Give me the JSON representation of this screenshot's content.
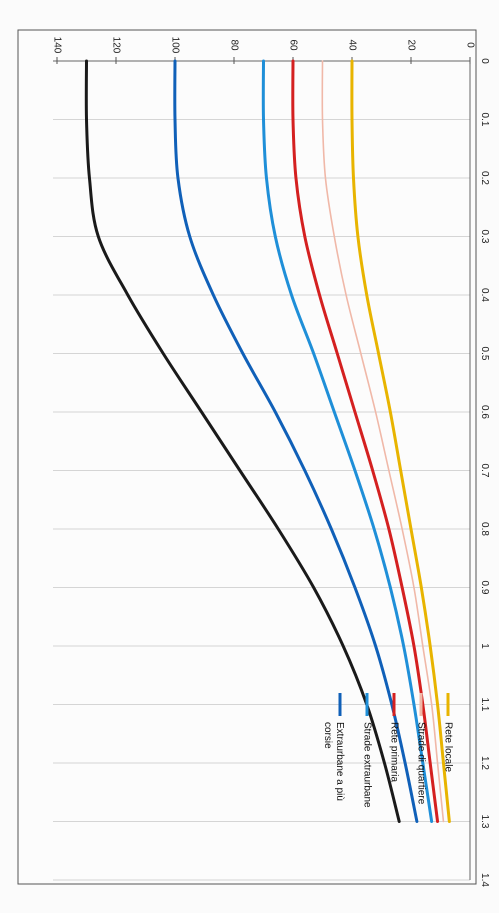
{
  "chart_data": {
    "type": "line",
    "title": "",
    "xlabel": "",
    "ylabel": "",
    "xlim": [
      0,
      1.4
    ],
    "ylim": [
      0,
      140
    ],
    "x_ticks": [
      "0",
      "0.1",
      "0.2",
      "0.3",
      "0.4",
      "0.5",
      "0.6",
      "0.7",
      "0.8",
      "0.9",
      "1",
      "1.1",
      "1.2",
      "1.3",
      "1.4"
    ],
    "y_ticks": [
      "0",
      "20",
      "40",
      "60",
      "80",
      "100",
      "120",
      "140"
    ],
    "grid": true,
    "legend_position": "bottom-right",
    "x": [
      0,
      0.1,
      0.2,
      0.3,
      0.4,
      0.5,
      0.6,
      0.7,
      0.8,
      0.9,
      1.0,
      1.1,
      1.2,
      1.3
    ],
    "series": [
      {
        "name": "Rete locale",
        "color": "#e8b400",
        "values": [
          40,
          40,
          39.5,
          38,
          35,
          31,
          27,
          23.5,
          20,
          16.5,
          13.5,
          11,
          9,
          7
        ]
      },
      {
        "name": "Strade di quartiere",
        "color": "#f0b8a8",
        "values": [
          50,
          50,
          49,
          46,
          42,
          37,
          32,
          27.5,
          23,
          19,
          16,
          13,
          11,
          9
        ]
      },
      {
        "name": "Rete primaria",
        "color": "#d42020",
        "values": [
          60,
          60,
          59,
          56,
          51,
          45,
          39,
          33,
          27.5,
          23,
          19,
          16,
          13.5,
          11
        ]
      },
      {
        "name": "Strade extraurbane",
        "color": "#1f8fd8",
        "values": [
          70,
          70,
          69,
          66,
          60.5,
          53,
          46,
          39,
          32.5,
          27,
          22.5,
          19,
          16,
          13
        ]
      },
      {
        "name": "Extraurbane a più corsie",
        "color": "#1060b8",
        "values": [
          100,
          100,
          99,
          95,
          87,
          77,
          66,
          56,
          47,
          39,
          32,
          26.5,
          22,
          18
        ]
      },
      {
        "name": "",
        "color": "#1a1a1a",
        "values": [
          130,
          130,
          129,
          126,
          116,
          104,
          91,
          78,
          65,
          53,
          43,
          35,
          29,
          24
        ]
      }
    ]
  }
}
